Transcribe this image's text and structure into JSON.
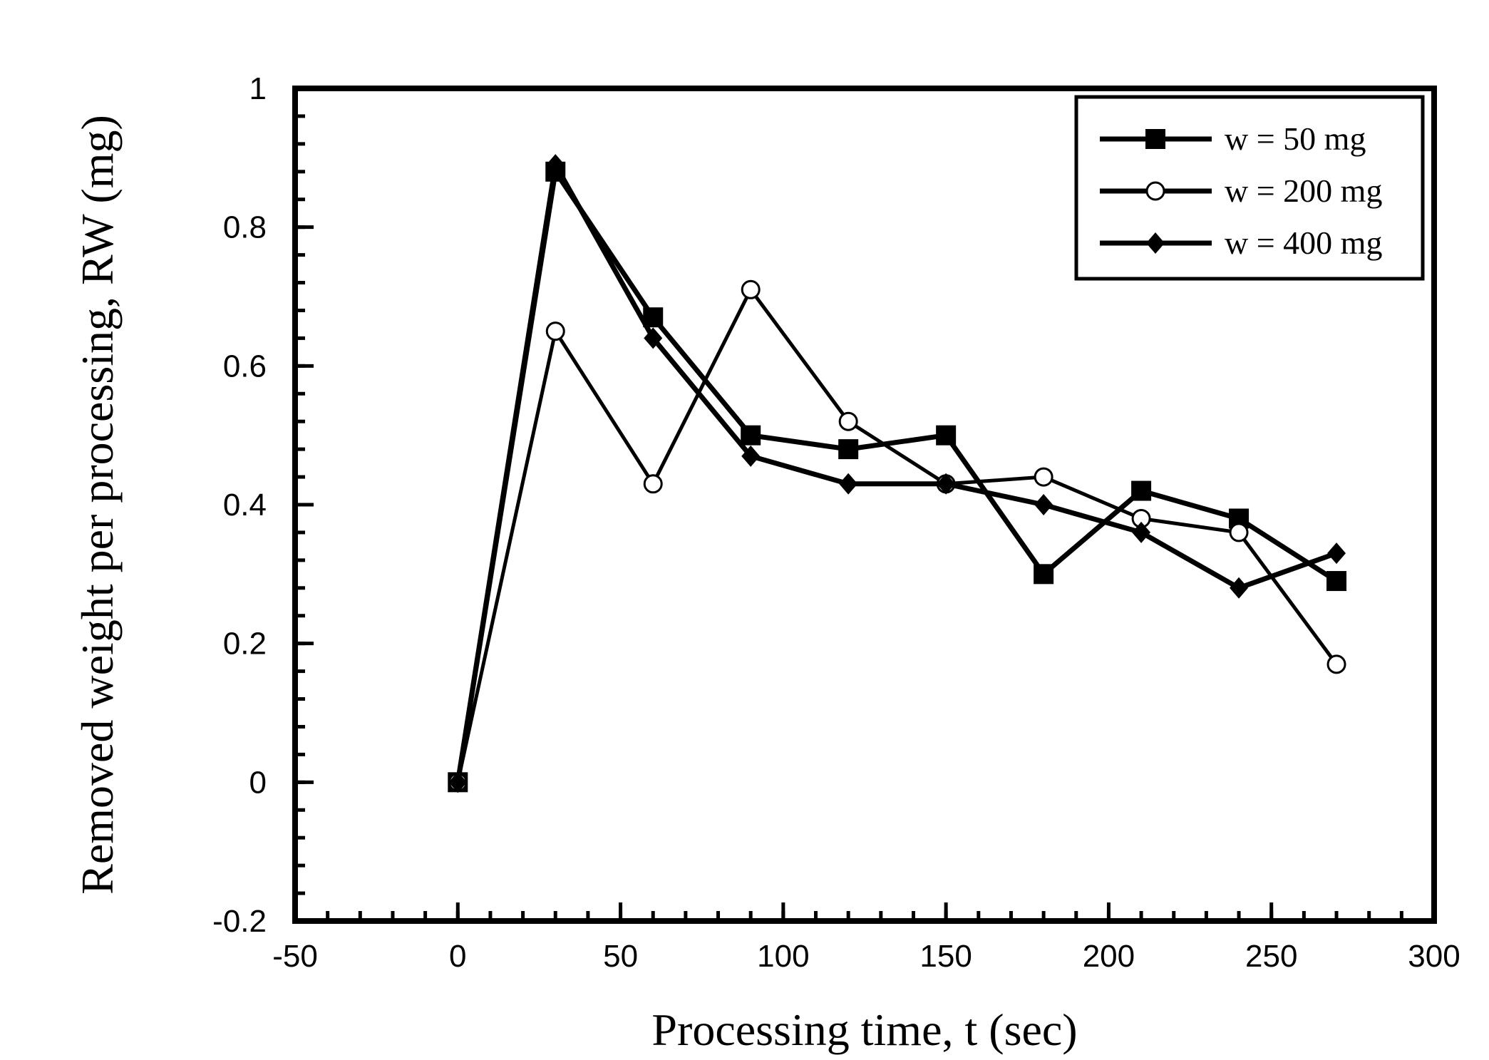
{
  "chart_data": {
    "type": "line",
    "title": "",
    "xlabel": "Processing time, t (sec)",
    "ylabel": "Removed weight per processing, RW (mg)",
    "xlim": [
      -50,
      300
    ],
    "ylim": [
      -0.2,
      1
    ],
    "x_ticks": [
      -50,
      0,
      50,
      100,
      150,
      200,
      250,
      300
    ],
    "x_tick_labels": [
      "-50",
      "0",
      "50",
      "100",
      "150",
      "200",
      "250",
      "300"
    ],
    "y_ticks": [
      -0.2,
      0,
      0.2,
      0.4,
      0.6,
      0.8,
      1
    ],
    "y_tick_labels": [
      "-0.2",
      "0",
      "0.2",
      "0.4",
      "0.6",
      "0.8",
      "1"
    ],
    "grid": false,
    "legend_position": "top-right",
    "series": [
      {
        "name": "w = 50 mg",
        "marker": "filled-square",
        "x": [
          0,
          30,
          60,
          90,
          120,
          150,
          180,
          210,
          240,
          270
        ],
        "values": [
          0,
          0.88,
          0.67,
          0.5,
          0.48,
          0.5,
          0.3,
          0.42,
          0.38,
          0.29
        ]
      },
      {
        "name": "w = 200 mg",
        "marker": "open-circle",
        "x": [
          0,
          30,
          60,
          90,
          120,
          150,
          180,
          210,
          240,
          270
        ],
        "values": [
          0,
          0.65,
          0.43,
          0.71,
          0.52,
          0.43,
          0.44,
          0.38,
          0.36,
          0.17
        ]
      },
      {
        "name": "w = 400 mg",
        "marker": "filled-diamond",
        "x": [
          0,
          30,
          60,
          90,
          120,
          150,
          180,
          210,
          240,
          270
        ],
        "values": [
          0,
          0.89,
          0.64,
          0.47,
          0.43,
          0.43,
          0.4,
          0.36,
          0.28,
          0.33
        ]
      }
    ]
  }
}
